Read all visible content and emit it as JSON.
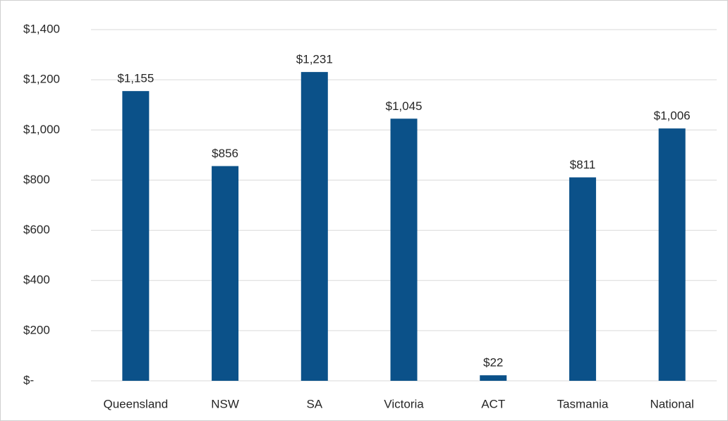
{
  "chart_data": {
    "type": "bar",
    "categories": [
      "Queensland",
      "NSW",
      "SA",
      "Victoria",
      "ACT",
      "Tasmania",
      "National"
    ],
    "values": [
      1155,
      856,
      1231,
      1045,
      22,
      811,
      1006
    ],
    "value_labels": [
      "$1,155",
      "$856",
      "$1,231",
      "$1,045",
      "$22",
      "$811",
      "$1,006"
    ],
    "color": "#0b5189",
    "ylim": [
      0,
      1400
    ],
    "yticks": [
      {
        "value": 0,
        "label": "$-"
      },
      {
        "value": 200,
        "label": "$200"
      },
      {
        "value": 400,
        "label": "$400"
      },
      {
        "value": 600,
        "label": "$600"
      },
      {
        "value": 800,
        "label": "$800"
      },
      {
        "value": 1000,
        "label": "$1,000"
      },
      {
        "value": 1200,
        "label": "$1,200"
      },
      {
        "value": 1400,
        "label": "$1,400"
      }
    ],
    "grid": true
  }
}
